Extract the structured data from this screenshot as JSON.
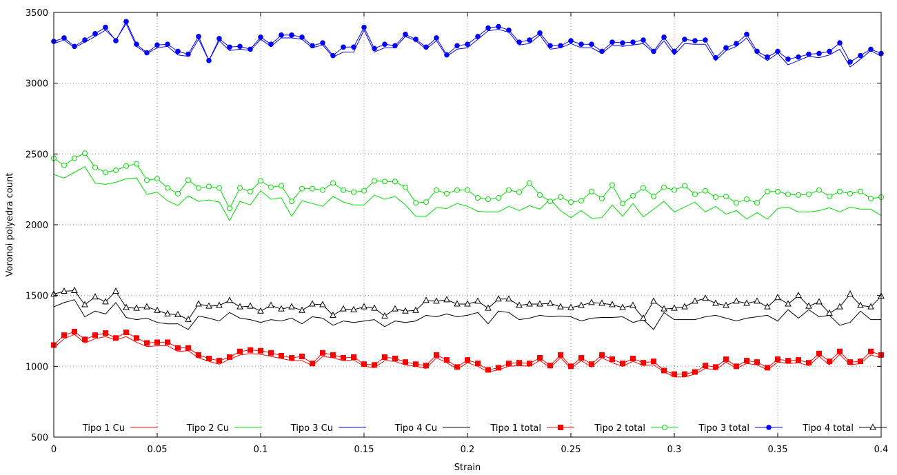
{
  "chart_data": {
    "type": "line",
    "xlabel": "Strain",
    "ylabel": "Voronoi polyedra count",
    "xlim": [
      0,
      0.4
    ],
    "ylim": [
      500,
      3500
    ],
    "xticks": [
      0,
      0.05,
      0.1,
      0.15,
      0.2,
      0.25,
      0.3,
      0.35,
      0.4
    ],
    "xtick_labels": [
      "0",
      "0.05",
      "0.1",
      "0.15",
      "0.2",
      "0.25",
      "0.3",
      "0.35",
      "0.4"
    ],
    "yticks": [
      500,
      1000,
      1500,
      2000,
      2500,
      3000,
      3500
    ],
    "ytick_labels": [
      "500",
      "1000",
      "1500",
      "2000",
      "2500",
      "3000",
      "3500"
    ],
    "grid": true,
    "legend_position": "bottom",
    "x": [
      0,
      0.005,
      0.01,
      0.015,
      0.02,
      0.025,
      0.03,
      0.035,
      0.04,
      0.045,
      0.05,
      0.055,
      0.06,
      0.065,
      0.07,
      0.075,
      0.08,
      0.085,
      0.09,
      0.095,
      0.1,
      0.105,
      0.11,
      0.115,
      0.12,
      0.125,
      0.13,
      0.135,
      0.14,
      0.145,
      0.15,
      0.155,
      0.16,
      0.165,
      0.17,
      0.175,
      0.18,
      0.185,
      0.19,
      0.195,
      0.2,
      0.205,
      0.21,
      0.215,
      0.22,
      0.225,
      0.23,
      0.235,
      0.24,
      0.245,
      0.25,
      0.255,
      0.26,
      0.265,
      0.27,
      0.275,
      0.28,
      0.285,
      0.29,
      0.295,
      0.3,
      0.305,
      0.31,
      0.315,
      0.32,
      0.325,
      0.33,
      0.335,
      0.34,
      0.345,
      0.35,
      0.355,
      0.36,
      0.365,
      0.37,
      0.375,
      0.38,
      0.385,
      0.39,
      0.395,
      0.4
    ],
    "series": [
      {
        "name": "Tipo 1 Cu",
        "color": "#ff0000",
        "marker": "none",
        "values": [
          1130,
          1195,
          1225,
          1165,
          1195,
          1210,
          1185,
          1210,
          1170,
          1140,
          1145,
          1145,
          1105,
          1110,
          1060,
          1035,
          1015,
          1050,
          1080,
          1090,
          1085,
          1070,
          1055,
          1040,
          1040,
          1005,
          1070,
          1060,
          1040,
          1045,
          1000,
          990,
          1040,
          1035,
          1010,
          1000,
          985,
          1060,
          1025,
          980,
          1025,
          1000,
          960,
          975,
          1000,
          1005,
          1000,
          1040,
          990,
          1060,
          985,
          1040,
          995,
          1060,
          1025,
          1000,
          1035,
          1005,
          1010,
          960,
          925,
          925,
          945,
          985,
          975,
          1030,
          985,
          1020,
          1010,
          975,
          1030,
          1020,
          1025,
          1005,
          1070,
          1010,
          1085,
          1010,
          1020,
          1080,
          1060
        ]
      },
      {
        "name": "Tipo 2 Cu",
        "color": "#00dd00",
        "marker": "none",
        "values": [
          2355,
          2330,
          2370,
          2410,
          2295,
          2285,
          2300,
          2325,
          2330,
          2215,
          2230,
          2170,
          2135,
          2205,
          2165,
          2175,
          2160,
          2030,
          2165,
          2140,
          2240,
          2180,
          2190,
          2060,
          2170,
          2150,
          2130,
          2200,
          2160,
          2140,
          2140,
          2210,
          2180,
          2200,
          2140,
          2060,
          2060,
          2120,
          2115,
          2150,
          2130,
          2095,
          2090,
          2090,
          2130,
          2100,
          2135,
          2110,
          2180,
          2100,
          2050,
          2100,
          2045,
          2050,
          2140,
          2060,
          2150,
          2055,
          2110,
          2165,
          2090,
          2125,
          2160,
          2090,
          2130,
          2075,
          2100,
          2040,
          2085,
          2040,
          2115,
          2125,
          2090,
          2090,
          2100,
          2120,
          2090,
          2125,
          2110,
          2110,
          2065
        ]
      },
      {
        "name": "Tipo 3 Cu",
        "color": "#0000ff",
        "marker": "none",
        "values": [
          3280,
          3305,
          3250,
          3290,
          3330,
          3375,
          3305,
          3420,
          3260,
          3210,
          3250,
          3260,
          3200,
          3190,
          3310,
          3160,
          3300,
          3230,
          3240,
          3230,
          3310,
          3260,
          3320,
          3320,
          3310,
          3250,
          3270,
          3185,
          3220,
          3220,
          3375,
          3220,
          3250,
          3250,
          3330,
          3300,
          3240,
          3300,
          3190,
          3240,
          3250,
          3310,
          3370,
          3380,
          3360,
          3270,
          3280,
          3340,
          3240,
          3250,
          3280,
          3250,
          3250,
          3210,
          3270,
          3260,
          3270,
          3280,
          3215,
          3300,
          3200,
          3280,
          3275,
          3275,
          3160,
          3230,
          3260,
          3320,
          3210,
          3160,
          3210,
          3130,
          3160,
          3190,
          3180,
          3200,
          3240,
          3115,
          3170,
          3230,
          3190
        ]
      },
      {
        "name": "Tipo 4 Cu",
        "color": "#000000",
        "marker": "none",
        "values": [
          1420,
          1450,
          1470,
          1350,
          1390,
          1370,
          1450,
          1345,
          1330,
          1340,
          1310,
          1300,
          1300,
          1260,
          1355,
          1340,
          1320,
          1380,
          1340,
          1330,
          1310,
          1330,
          1320,
          1340,
          1300,
          1350,
          1340,
          1290,
          1320,
          1310,
          1320,
          1330,
          1280,
          1320,
          1310,
          1320,
          1360,
          1350,
          1370,
          1350,
          1360,
          1380,
          1300,
          1390,
          1380,
          1330,
          1340,
          1360,
          1350,
          1355,
          1350,
          1320,
          1340,
          1345,
          1345,
          1350,
          1310,
          1330,
          1260,
          1380,
          1330,
          1330,
          1330,
          1350,
          1360,
          1340,
          1320,
          1340,
          1350,
          1360,
          1320,
          1400,
          1340,
          1400,
          1350,
          1360,
          1290,
          1310,
          1390,
          1330,
          1330
        ]
      },
      {
        "name": "Tipo 1 total",
        "color": "#ff0000",
        "marker": "square",
        "values": [
          1150,
          1220,
          1245,
          1190,
          1220,
          1235,
          1200,
          1240,
          1200,
          1165,
          1170,
          1170,
          1130,
          1130,
          1080,
          1055,
          1040,
          1065,
          1105,
          1115,
          1110,
          1095,
          1075,
          1060,
          1070,
          1020,
          1095,
          1080,
          1060,
          1065,
          1015,
          1010,
          1065,
          1055,
          1030,
          1015,
          1005,
          1080,
          1045,
          995,
          1045,
          1020,
          975,
          990,
          1020,
          1025,
          1020,
          1060,
          1005,
          1080,
          1000,
          1060,
          1015,
          1080,
          1050,
          1020,
          1055,
          1025,
          1035,
          970,
          945,
          945,
          960,
          1005,
          995,
          1050,
          1000,
          1040,
          1030,
          990,
          1050,
          1040,
          1045,
          1025,
          1090,
          1035,
          1105,
          1030,
          1035,
          1105,
          1080
        ]
      },
      {
        "name": "Tipo 2 total",
        "color": "#00dd00",
        "marker": "circle-open",
        "values": [
          2470,
          2420,
          2470,
          2505,
          2405,
          2370,
          2385,
          2415,
          2430,
          2315,
          2325,
          2260,
          2220,
          2315,
          2260,
          2270,
          2260,
          2115,
          2260,
          2235,
          2310,
          2265,
          2275,
          2165,
          2255,
          2255,
          2245,
          2295,
          2245,
          2230,
          2240,
          2310,
          2305,
          2305,
          2265,
          2155,
          2160,
          2245,
          2220,
          2245,
          2245,
          2190,
          2180,
          2190,
          2245,
          2230,
          2295,
          2210,
          2165,
          2195,
          2160,
          2170,
          2235,
          2185,
          2280,
          2150,
          2205,
          2260,
          2200,
          2265,
          2245,
          2275,
          2215,
          2240,
          2195,
          2200,
          2155,
          2180,
          2155,
          2235,
          2235,
          2215,
          2210,
          2215,
          2245,
          2200,
          2235,
          2220,
          2235,
          2185,
          2195
        ]
      },
      {
        "name": "Tipo 3 total",
        "color": "#0000ff",
        "marker": "circle-filled",
        "values": [
          3295,
          3320,
          3260,
          3305,
          3350,
          3395,
          3300,
          3435,
          3275,
          3215,
          3270,
          3275,
          3225,
          3205,
          3330,
          3160,
          3315,
          3255,
          3260,
          3240,
          3325,
          3275,
          3340,
          3340,
          3325,
          3265,
          3285,
          3195,
          3255,
          3255,
          3395,
          3245,
          3275,
          3265,
          3345,
          3310,
          3255,
          3320,
          3200,
          3265,
          3275,
          3330,
          3390,
          3400,
          3375,
          3290,
          3305,
          3355,
          3265,
          3265,
          3300,
          3275,
          3275,
          3225,
          3290,
          3285,
          3290,
          3305,
          3225,
          3325,
          3225,
          3310,
          3300,
          3305,
          3180,
          3250,
          3280,
          3345,
          3225,
          3185,
          3225,
          3170,
          3185,
          3205,
          3210,
          3225,
          3285,
          3150,
          3195,
          3240,
          3210
        ]
      },
      {
        "name": "Tipo 4 total",
        "color": "#000000",
        "marker": "triangle-open",
        "values": [
          1510,
          1530,
          1535,
          1435,
          1490,
          1455,
          1530,
          1415,
          1410,
          1420,
          1395,
          1370,
          1365,
          1330,
          1440,
          1425,
          1430,
          1465,
          1420,
          1425,
          1390,
          1430,
          1405,
          1420,
          1395,
          1440,
          1435,
          1360,
          1405,
          1400,
          1420,
          1410,
          1355,
          1405,
          1390,
          1395,
          1465,
          1460,
          1470,
          1440,
          1440,
          1460,
          1410,
          1475,
          1475,
          1430,
          1440,
          1440,
          1445,
          1420,
          1415,
          1430,
          1450,
          1445,
          1435,
          1415,
          1430,
          1340,
          1460,
          1405,
          1410,
          1420,
          1460,
          1480,
          1445,
          1430,
          1460,
          1445,
          1460,
          1420,
          1485,
          1440,
          1500,
          1425,
          1455,
          1375,
          1420,
          1510,
          1430,
          1420,
          1495
        ]
      }
    ]
  }
}
